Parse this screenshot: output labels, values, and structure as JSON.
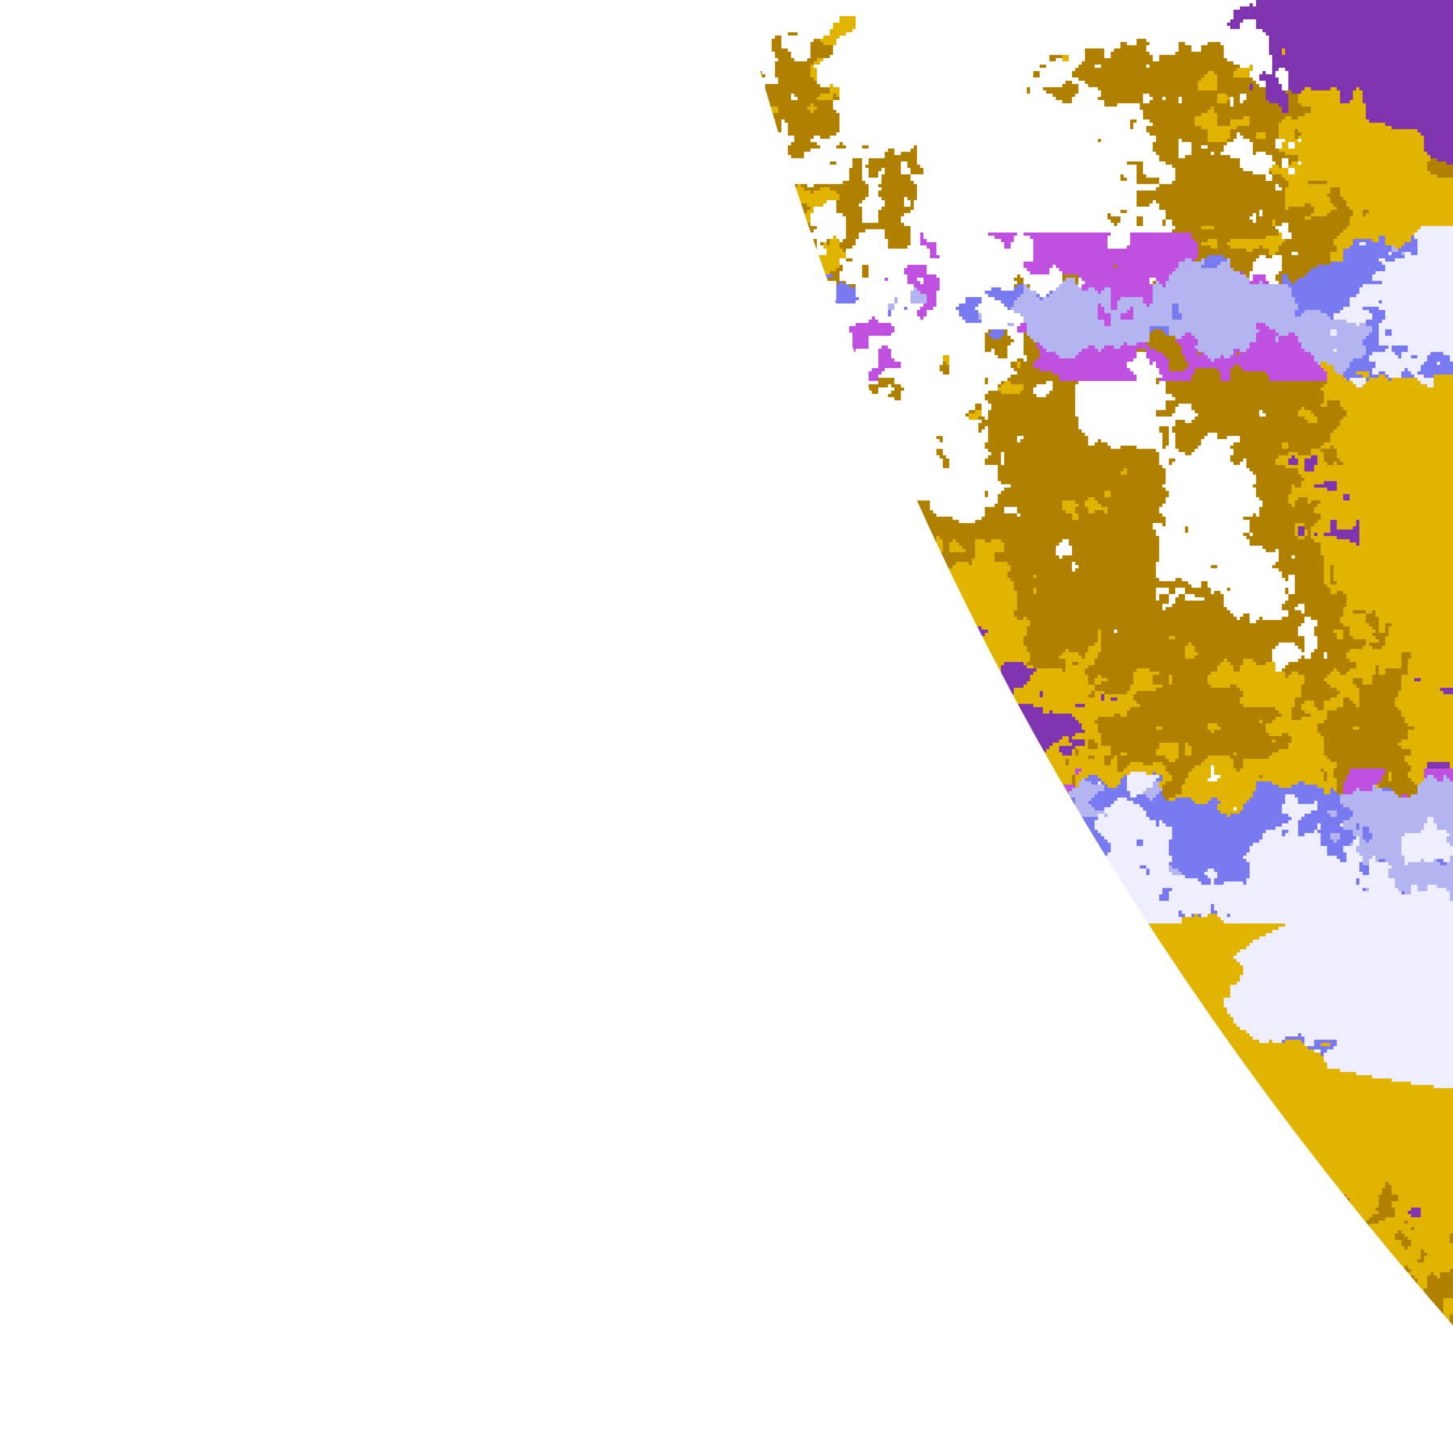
{
  "image": {
    "kind": "false-color satellite cloud classification of a partial globe disk",
    "background": "#ffffff",
    "palette": {
      "clear": "#ffffff",
      "gold": "#e0b400",
      "dark_gold": "#b08000",
      "purple": "#7f35b0",
      "magenta": "#c050e0",
      "blue": "#7a7af0",
      "light_blue": "#b4b4f0",
      "pale_lavender": "#eeeeff",
      "gray_blue": "#a0a8c8"
    }
  }
}
